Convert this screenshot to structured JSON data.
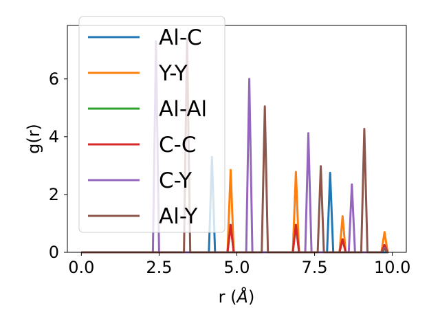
{
  "chart_data": {
    "type": "line",
    "xlabel": "r (",
    "xlabel_unit": "Å",
    "xlabel_close": ")",
    "ylabel": "g(r)",
    "xlim": [
      -0.45,
      10.45
    ],
    "ylim": [
      0,
      7.85
    ],
    "xticks": [
      0.0,
      2.5,
      5.0,
      7.5,
      10.0
    ],
    "xtick_labels": [
      "0.0",
      "2.5",
      "5.0",
      "7.5",
      "10.0"
    ],
    "yticks": [
      0,
      2,
      4,
      6
    ],
    "ytick_labels": [
      "0",
      "2",
      "4",
      "6"
    ],
    "grid": false,
    "legend_position": "upper-left",
    "series": [
      {
        "name": "Al-C",
        "color": "#1f77b4",
        "peaks": [
          [
            4.2,
            3.3
          ],
          [
            8.0,
            2.75
          ]
        ]
      },
      {
        "name": "Y-Y",
        "color": "#ff7f0e",
        "peaks": [
          [
            4.8,
            2.85
          ],
          [
            6.9,
            2.78
          ],
          [
            8.4,
            1.25
          ],
          [
            9.75,
            0.7
          ]
        ]
      },
      {
        "name": "Al-Al",
        "color": "#2ca02c",
        "peaks": [
          [
            4.8,
            0.95
          ],
          [
            6.9,
            0.95
          ],
          [
            8.4,
            0.45
          ],
          [
            9.75,
            0.25
          ]
        ]
      },
      {
        "name": "C-C",
        "color": "#d62728",
        "peaks": [
          [
            4.8,
            0.95
          ],
          [
            6.9,
            0.95
          ],
          [
            8.4,
            0.45
          ],
          [
            9.75,
            0.25
          ]
        ]
      },
      {
        "name": "C-Y",
        "color": "#9467bd",
        "peaks": [
          [
            2.4,
            7.3
          ],
          [
            5.4,
            6.0
          ],
          [
            7.3,
            4.12
          ],
          [
            8.7,
            2.35
          ],
          [
            9.75,
            0.15
          ]
        ]
      },
      {
        "name": "Al-Y",
        "color": "#8c564b",
        "peaks": [
          [
            3.4,
            7.4
          ],
          [
            5.9,
            5.05
          ],
          [
            7.7,
            2.98
          ],
          [
            9.1,
            4.27
          ],
          [
            9.75,
            0.12
          ]
        ]
      }
    ]
  }
}
